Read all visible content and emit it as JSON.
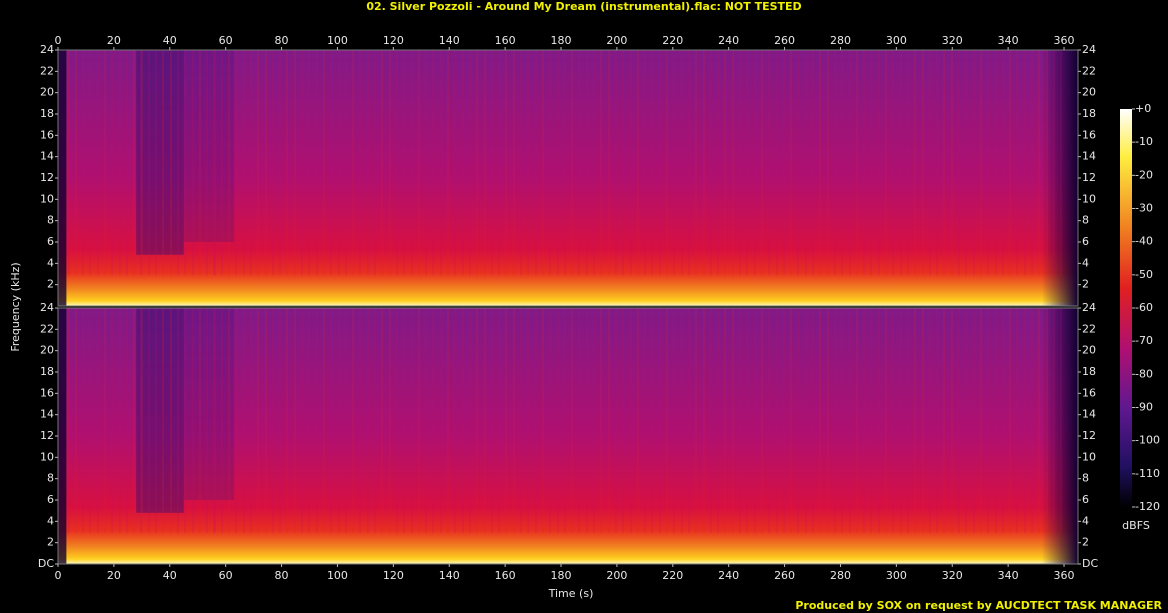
{
  "chart_data": {
    "type": "spectrogram",
    "title": "02. Silver Pozzoli - Around My Dream (instrumental).flac: NOT TESTED",
    "xlabel": "Time (s)",
    "ylabel": "Frequency (kHz)",
    "xlim": [
      0,
      365
    ],
    "xticks": [
      0,
      20,
      40,
      60,
      80,
      100,
      120,
      140,
      160,
      180,
      200,
      220,
      240,
      260,
      280,
      300,
      320,
      340,
      360
    ],
    "ylim": [
      0,
      24
    ],
    "yticks": [
      {
        "value": 0,
        "label": "DC"
      },
      2,
      4,
      6,
      8,
      10,
      12,
      14,
      16,
      18,
      20,
      22,
      24
    ],
    "colorbar": {
      "label": "dBFS",
      "lim": [
        -120,
        0
      ],
      "ticks": [
        {
          "value": 0,
          "label": "+0"
        },
        -10,
        -20,
        -30,
        -40,
        -50,
        -60,
        -70,
        -80,
        -90,
        -100,
        -110,
        -120
      ]
    },
    "footer": "Produced by SOX on request by AUCDTECT TASK MANAGER"
  }
}
